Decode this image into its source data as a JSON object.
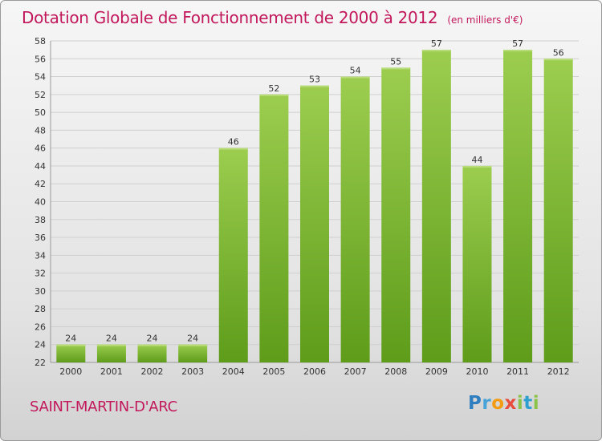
{
  "title": "Dotation Globale de Fonctionnement de 2000 à 2012",
  "unit_note": "(en milliers d'€)",
  "commune": "SAINT-MARTIN-D'ARC",
  "logo_text": "Proxiti",
  "colors": {
    "title": "#c2185b",
    "bar_top": "#9ccd4f",
    "bar_bottom": "#5e9c1a",
    "grid": "#cfcfcf",
    "axis_text": "#333333"
  },
  "chart_data": {
    "type": "bar",
    "categories": [
      "2000",
      "2001",
      "2002",
      "2003",
      "2004",
      "2005",
      "2006",
      "2007",
      "2008",
      "2009",
      "2010",
      "2011",
      "2012"
    ],
    "values": [
      24,
      24,
      24,
      24,
      46,
      52,
      53,
      54,
      55,
      57,
      44,
      57,
      56
    ],
    "ylim": [
      22,
      58
    ],
    "ytick_step": 2,
    "grid": true,
    "data_labels": true
  }
}
